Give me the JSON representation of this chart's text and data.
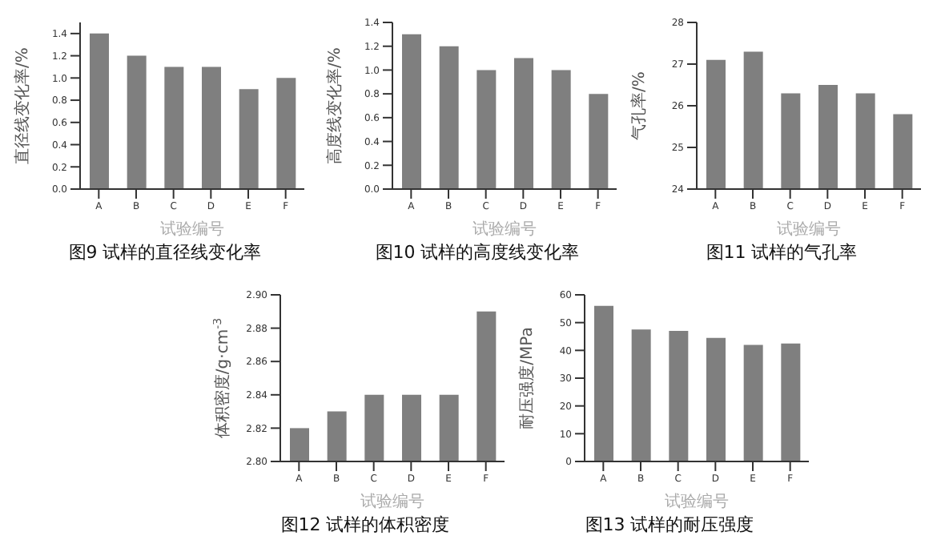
{
  "chart_data": [
    {
      "type": "bar",
      "title": "图9 试样的直径线变化率",
      "xlabel": "试验编号",
      "ylabel": "直径线变化率/%",
      "categories": [
        "A",
        "B",
        "C",
        "D",
        "E",
        "F"
      ],
      "values": [
        1.4,
        1.2,
        1.1,
        1.1,
        0.9,
        1.0
      ],
      "color": "#7f7f7f",
      "ylim": [
        0,
        1.5
      ],
      "yticks": [
        {
          "value": 0,
          "label": "0.0"
        },
        {
          "value": 0.2,
          "label": "0.2"
        },
        {
          "value": 0.4,
          "label": "0.4"
        },
        {
          "value": 0.6,
          "label": "0.6"
        },
        {
          "value": 0.8,
          "label": "0.8"
        },
        {
          "value": 1,
          "label": "1.0"
        },
        {
          "value": 1.2,
          "label": "1.2"
        },
        {
          "value": 1.4,
          "label": "1.4"
        }
      ],
      "grid": false
    },
    {
      "type": "bar",
      "title": "图10 试样的高度线变化率",
      "xlabel": "试验编号",
      "ylabel": "高度线变化率/%",
      "categories": [
        "A",
        "B",
        "C",
        "D",
        "E",
        "F"
      ],
      "values": [
        1.3,
        1.2,
        1.0,
        1.1,
        1.0,
        0.8
      ],
      "color": "#7f7f7f",
      "ylim": [
        0,
        1.4
      ],
      "yticks": [
        {
          "value": 0,
          "label": "0.0"
        },
        {
          "value": 0.2,
          "label": "0.2"
        },
        {
          "value": 0.4,
          "label": "0.4"
        },
        {
          "value": 0.6,
          "label": "0.6"
        },
        {
          "value": 0.8,
          "label": "0.8"
        },
        {
          "value": 1,
          "label": "1.0"
        },
        {
          "value": 1.2,
          "label": "1.2"
        },
        {
          "value": 1.4,
          "label": "1.4"
        }
      ],
      "grid": false
    },
    {
      "type": "bar",
      "title": "图11 试样的气孔率",
      "xlabel": "试验编号",
      "ylabel": "气孔率/%",
      "categories": [
        "A",
        "B",
        "C",
        "D",
        "E",
        "F"
      ],
      "values": [
        27.1,
        27.3,
        26.3,
        26.5,
        26.3,
        25.8
      ],
      "color": "#7f7f7f",
      "ylim": [
        24,
        28
      ],
      "yticks": [
        24,
        25,
        26,
        27,
        28
      ],
      "grid": false
    },
    {
      "type": "bar",
      "title": "图12 试样的体积密度",
      "xlabel": "试验编号",
      "ylabel": "体积密度/g·cm$^{-3}$",
      "categories": [
        "A",
        "B",
        "C",
        "D",
        "E",
        "F"
      ],
      "values": [
        2.82,
        2.83,
        2.84,
        2.84,
        2.84,
        2.89
      ],
      "color": "#7f7f7f",
      "ylim": [
        2.8,
        2.9
      ],
      "yticks": [
        {
          "value": 2.8,
          "label": "2.80"
        },
        {
          "value": 2.82,
          "label": "2.82"
        },
        {
          "value": 2.84,
          "label": "2.84"
        },
        {
          "value": 2.86,
          "label": "2.86"
        },
        {
          "value": 2.88,
          "label": "2.88"
        },
        {
          "value": 2.9,
          "label": "2.90"
        }
      ],
      "grid": false
    },
    {
      "type": "bar",
      "title": "图13 试样的耐压强度",
      "xlabel": "试验编号",
      "ylabel": "耐压强度/MPa",
      "categories": [
        "A",
        "B",
        "C",
        "D",
        "E",
        "F"
      ],
      "values": [
        56,
        47.5,
        47,
        44.5,
        42,
        42.5
      ],
      "color": "#7f7f7f",
      "ylim": [
        0,
        60
      ],
      "yticks": [
        0,
        10,
        20,
        30,
        40,
        50,
        60
      ],
      "grid": false
    }
  ]
}
